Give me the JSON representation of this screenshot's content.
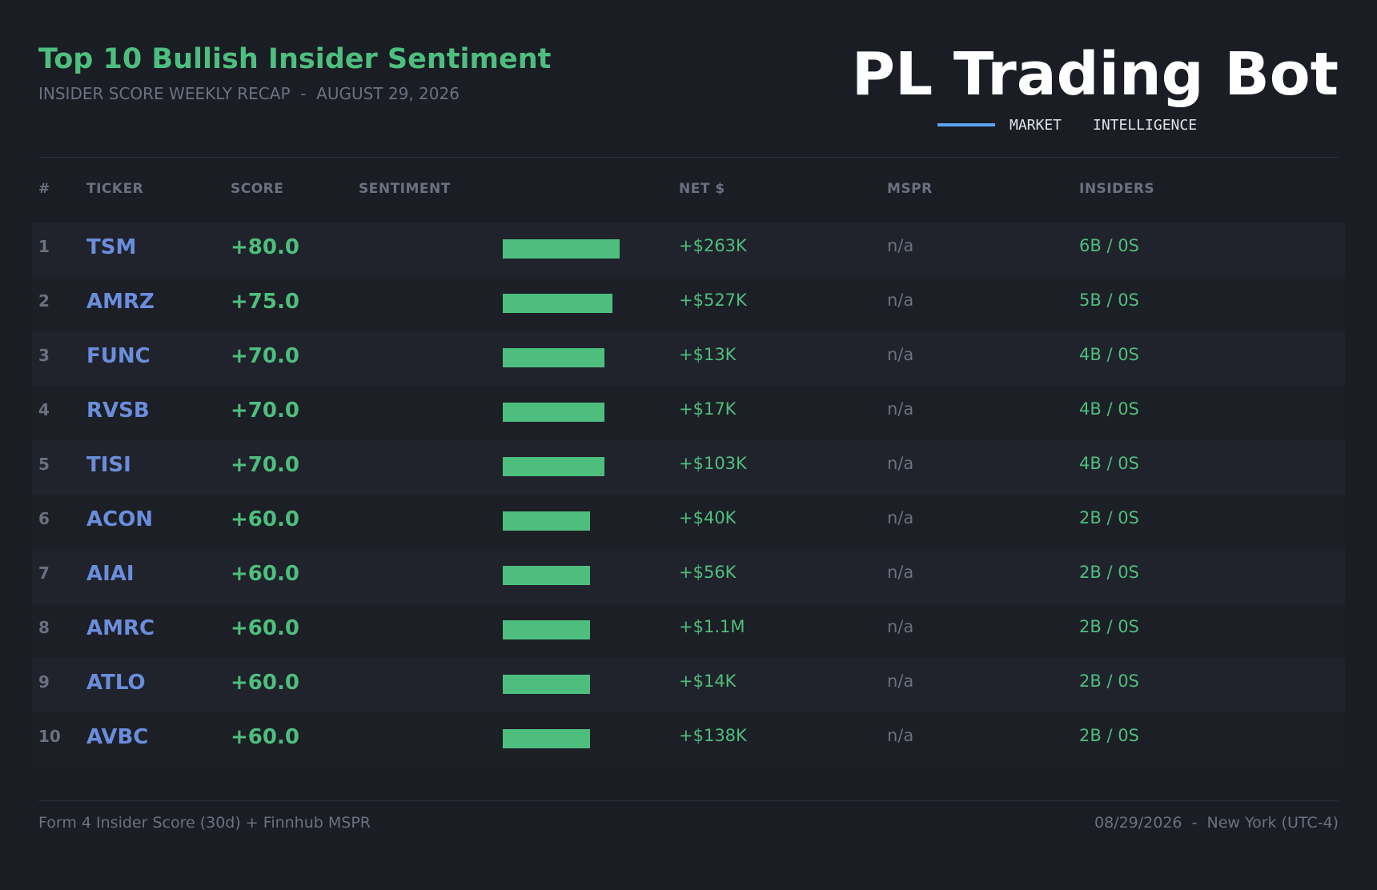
{
  "header": {
    "title": "Top 10 Bullish Insider Sentiment",
    "subtitle": "INSIDER SCORE WEEKLY RECAP  -  AUGUST 29, 2026",
    "brand": "PL Trading Bot",
    "brand_tag_1": "MARKET",
    "brand_tag_2": "INTELLIGENCE"
  },
  "columns": {
    "rank": "#",
    "ticker": "TICKER",
    "score": "SCORE",
    "sentiment": "SENTIMENT",
    "net": "NET $",
    "mspr": "MSPR",
    "insiders": "INSIDERS"
  },
  "rows": [
    {
      "rank": "1",
      "ticker": "TSM",
      "score": "+80.0",
      "score_value": 80.0,
      "net": "+$263K",
      "mspr": "n/a",
      "insiders": "6B / 0S"
    },
    {
      "rank": "2",
      "ticker": "AMRZ",
      "score": "+75.0",
      "score_value": 75.0,
      "net": "+$527K",
      "mspr": "n/a",
      "insiders": "5B / 0S"
    },
    {
      "rank": "3",
      "ticker": "FUNC",
      "score": "+70.0",
      "score_value": 70.0,
      "net": "+$13K",
      "mspr": "n/a",
      "insiders": "4B / 0S"
    },
    {
      "rank": "4",
      "ticker": "RVSB",
      "score": "+70.0",
      "score_value": 70.0,
      "net": "+$17K",
      "mspr": "n/a",
      "insiders": "4B / 0S"
    },
    {
      "rank": "5",
      "ticker": "TISI",
      "score": "+70.0",
      "score_value": 70.0,
      "net": "+$103K",
      "mspr": "n/a",
      "insiders": "4B / 0S"
    },
    {
      "rank": "6",
      "ticker": "ACON",
      "score": "+60.0",
      "score_value": 60.0,
      "net": "+$40K",
      "mspr": "n/a",
      "insiders": "2B / 0S"
    },
    {
      "rank": "7",
      "ticker": "AIAI",
      "score": "+60.0",
      "score_value": 60.0,
      "net": "+$56K",
      "mspr": "n/a",
      "insiders": "2B / 0S"
    },
    {
      "rank": "8",
      "ticker": "AMRC",
      "score": "+60.0",
      "score_value": 60.0,
      "net": "+$1.1M",
      "mspr": "n/a",
      "insiders": "2B / 0S"
    },
    {
      "rank": "9",
      "ticker": "ATLO",
      "score": "+60.0",
      "score_value": 60.0,
      "net": "+$14K",
      "mspr": "n/a",
      "insiders": "2B / 0S"
    },
    {
      "rank": "10",
      "ticker": "AVBC",
      "score": "+60.0",
      "score_value": 60.0,
      "net": "+$138K",
      "mspr": "n/a",
      "insiders": "2B / 0S"
    }
  ],
  "footer": {
    "source": "Form 4 Insider Score (30d) + Finnhub MSPR",
    "timestamp": "08/29/2026  -  New York (UTC-4)"
  },
  "colors": {
    "background": "#1a1d24",
    "accent_green": "#4ebe7e",
    "ticker_blue": "#6a8ddc",
    "muted": "#6b7180",
    "brand_rule": "#5aa6f0"
  }
}
